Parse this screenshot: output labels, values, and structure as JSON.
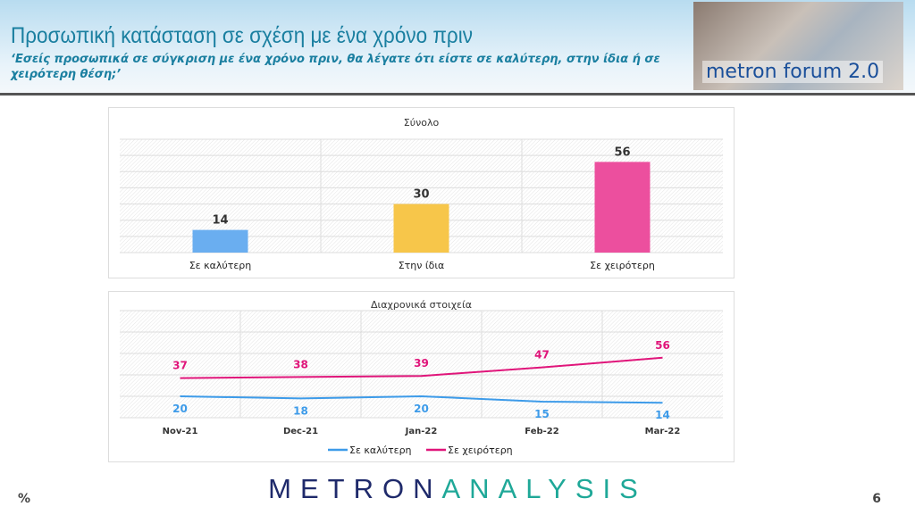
{
  "header": {
    "title": "Προσωπική κατάσταση σε σχέση με ένα χρόνο πριν",
    "subtitle": "‘Εσείς προσωπικά σε σύγκριση με ένα χρόνο πριν, θα λέγατε ότι είστε σε καλύτερη, στην ίδια ή σε χειρότερη θέση;’",
    "logo_text": "metron forum 2.0"
  },
  "footer": {
    "brand_left": "METRON",
    "brand_right": "ANALYSIS",
    "unit": "%",
    "page": "6"
  },
  "chart_data": [
    {
      "type": "bar",
      "title": "Σύνολο",
      "categories": [
        "Σε καλύτερη",
        "Στην ίδια",
        "Σε χειρότερη"
      ],
      "values": [
        14,
        30,
        56
      ],
      "colors": [
        "#6aaef0",
        "#f7c64a",
        "#ec4f9e"
      ],
      "ylim": [
        0,
        70
      ],
      "grid": true
    },
    {
      "type": "line",
      "title": "Διαχρονικά στοιχεία",
      "x": [
        "Nov-21",
        "Dec-21",
        "Jan-22",
        "Feb-22",
        "Mar-22"
      ],
      "ylim": [
        0,
        100
      ],
      "grid": true,
      "legend": "bottom",
      "series": [
        {
          "name": "Σε καλύτερη",
          "values": [
            20,
            18,
            20,
            15,
            14
          ],
          "color": "#3d9be9"
        },
        {
          "name": "Σε χειρότερη",
          "values": [
            37,
            38,
            39,
            47,
            56
          ],
          "color": "#e0157a"
        }
      ]
    }
  ]
}
